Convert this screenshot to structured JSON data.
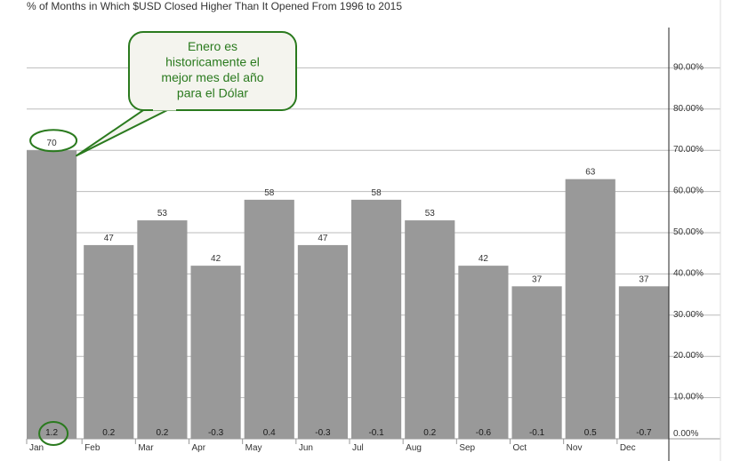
{
  "chart_data": {
    "type": "bar",
    "title": "% of Months in Which $USD Closed Higher Than It Opened From 1996 to 2015",
    "categories": [
      "Jan",
      "Feb",
      "Mar",
      "Apr",
      "May",
      "Jun",
      "Jul",
      "Aug",
      "Sep",
      "Oct",
      "Nov",
      "Dec"
    ],
    "values": [
      70,
      47,
      53,
      42,
      58,
      47,
      58,
      53,
      42,
      37,
      63,
      37
    ],
    "inner_labels": [
      "1.2",
      "0.2",
      "0.2",
      "-0.3",
      "0.4",
      "-0.3",
      "-0.1",
      "0.2",
      "-0.6",
      "-0.1",
      "0.5",
      "-0.7"
    ],
    "ylim": [
      0,
      100
    ],
    "y_ticks": [
      "0.00%",
      "10.00%",
      "20.00%",
      "30.00%",
      "40.00%",
      "50.00%",
      "60.00%",
      "70.00%",
      "80.00%",
      "90.00%"
    ],
    "axis_position": "right",
    "grid": true,
    "bar_color": "#999999",
    "grid_color": "#bbbbbb",
    "xlabel": "",
    "ylabel": ""
  },
  "annotation": {
    "lines": [
      "Enero es",
      "historicamente el",
      "mejor mes del año",
      "para el Dólar"
    ],
    "highlight_category": "Jan",
    "color": "#2a7a1e",
    "fill": "#f4f4ee"
  }
}
